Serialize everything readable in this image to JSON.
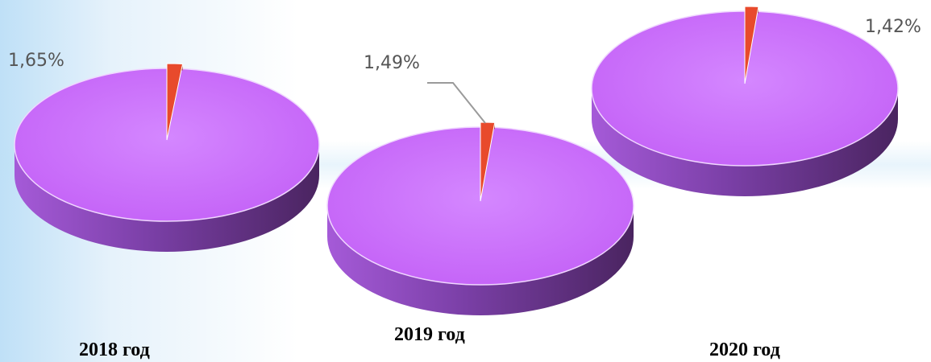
{
  "colors": {
    "main_top": "#c462f7",
    "main_side_dark": "#4a2460",
    "main_side_light": "#a55ad8",
    "minor_top": "#e84a2c",
    "minor_side": "#9c2a18",
    "label": "#555555",
    "leader": "#9a9a9a"
  },
  "chart_data": [
    {
      "type": "pie",
      "title": "2018 год",
      "slices": [
        {
          "value": 1.65,
          "label": "1,65%",
          "color": "#e84a2c"
        },
        {
          "value": 98.35,
          "color": "#c462f7"
        }
      ]
    },
    {
      "type": "pie",
      "title": "2019 год",
      "slices": [
        {
          "value": 1.49,
          "label": "1,49%",
          "color": "#e84a2c"
        },
        {
          "value": 98.51,
          "color": "#c462f7"
        }
      ]
    },
    {
      "type": "pie",
      "title": "2020 год",
      "slices": [
        {
          "value": 1.42,
          "label": "1,42%",
          "color": "#e84a2c"
        },
        {
          "value": 98.58,
          "color": "#c462f7"
        }
      ]
    }
  ]
}
